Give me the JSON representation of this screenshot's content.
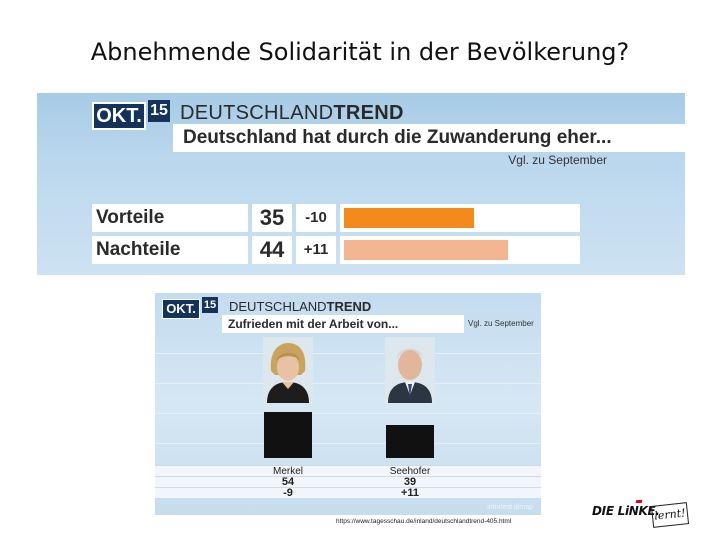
{
  "slide": {
    "title": "Abnehmende Solidarität in der Bevölkerung?",
    "source_url": "https://www.tagesschau.de/inland/deutschlandtrend-405.html"
  },
  "logo": {
    "text": "DIE LiNKE.",
    "badge": "lernt!"
  },
  "panel_top": {
    "month": "OKT.",
    "number": "15",
    "brand_regular": "DEUTSCHLAND",
    "brand_bold": "TREND",
    "question": "Deutschland hat durch die Zuwanderung eher...",
    "comparison_note": "Vgl. zu September",
    "rows": [
      {
        "label": "Vorteile",
        "value": "35",
        "change": "-10",
        "color": "#f58a1c"
      },
      {
        "label": "Nachteile",
        "value": "44",
        "change": "+11",
        "color": "#f3b690"
      }
    ]
  },
  "panel_bottom": {
    "month": "OKT.",
    "number": "15",
    "brand_regular": "DEUTSCHLAND",
    "brand_bold": "TREND",
    "question": "Zufrieden mit der Arbeit von...",
    "comparison_note": "Vgl. zu September",
    "people": [
      {
        "name": "Merkel",
        "value": "54",
        "change": "-9"
      },
      {
        "name": "Seehofer",
        "value": "39",
        "change": "+11"
      }
    ],
    "credit": "infratest dimap"
  },
  "chart_data": [
    {
      "type": "bar",
      "title": "Deutschland hat durch die Zuwanderung eher...",
      "categories": [
        "Vorteile",
        "Nachteile"
      ],
      "values": [
        35,
        44
      ],
      "changes_vs_september": [
        -10,
        11
      ],
      "colors": [
        "#f58a1c",
        "#f3b690"
      ]
    },
    {
      "type": "bar",
      "title": "Zufrieden mit der Arbeit von...",
      "categories": [
        "Merkel",
        "Seehofer"
      ],
      "values": [
        54,
        39
      ],
      "changes_vs_september": [
        -9,
        11
      ]
    }
  ]
}
